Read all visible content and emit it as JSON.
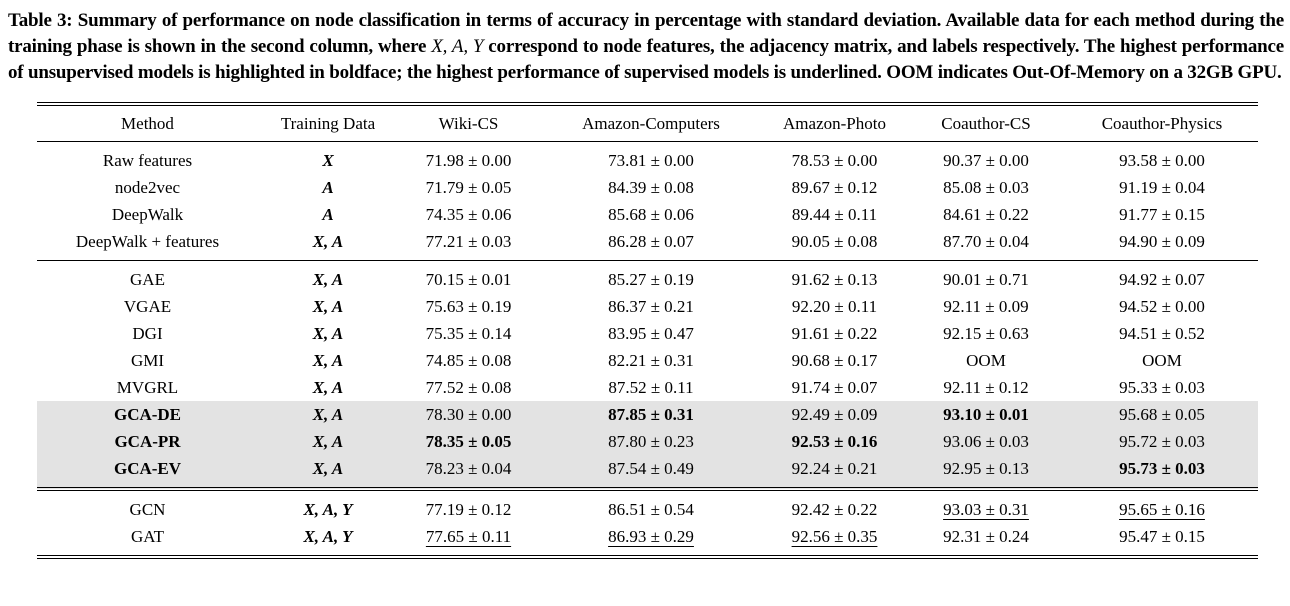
{
  "caption": {
    "before_math": "Table 3: Summary of performance on node classification in terms of accuracy in percentage with standard deviation. Available data for each method during the training phase is shown in the second column, where ",
    "math": "X, A, Y",
    "after_math": " correspond to node features, the adjacency matrix, and labels respectively. The highest performance of unsupervised models is highlighted in boldface; the highest performance of supervised models is underlined. OOM indicates Out-Of-Memory on a 32GB GPU."
  },
  "table": {
    "columns": [
      "Method",
      "Training Data",
      "Wiki-CS",
      "Amazon-Computers",
      "Amazon-Photo",
      "Coauthor-CS",
      "Coauthor-Physics"
    ],
    "highlight_color": "#e3e3e3",
    "groups": [
      {
        "name": "traditional-baselines",
        "rows": [
          {
            "method": "Raw features",
            "training": "X",
            "values": [
              {
                "text": "71.98 ± 0.00"
              },
              {
                "text": "73.81 ± 0.00"
              },
              {
                "text": "78.53 ± 0.00"
              },
              {
                "text": "90.37 ± 0.00"
              },
              {
                "text": "93.58 ± 0.00"
              }
            ]
          },
          {
            "method": "node2vec",
            "training": "A",
            "values": [
              {
                "text": "71.79 ± 0.05"
              },
              {
                "text": "84.39 ± 0.08"
              },
              {
                "text": "89.67 ± 0.12"
              },
              {
                "text": "85.08 ± 0.03"
              },
              {
                "text": "91.19 ± 0.04"
              }
            ]
          },
          {
            "method": "DeepWalk",
            "training": "A",
            "values": [
              {
                "text": "74.35 ± 0.06"
              },
              {
                "text": "85.68 ± 0.06"
              },
              {
                "text": "89.44 ± 0.11"
              },
              {
                "text": "84.61 ± 0.22"
              },
              {
                "text": "91.77 ± 0.15"
              }
            ]
          },
          {
            "method": "DeepWalk + features",
            "training": "X, A",
            "values": [
              {
                "text": "77.21 ± 0.03"
              },
              {
                "text": "86.28 ± 0.07"
              },
              {
                "text": "90.05 ± 0.08"
              },
              {
                "text": "87.70 ± 0.04"
              },
              {
                "text": "94.90 ± 0.09"
              }
            ]
          }
        ]
      },
      {
        "name": "unsupervised-models",
        "rows": [
          {
            "method": "GAE",
            "training": "X, A",
            "values": [
              {
                "text": "70.15 ± 0.01"
              },
              {
                "text": "85.27 ± 0.19"
              },
              {
                "text": "91.62 ± 0.13"
              },
              {
                "text": "90.01 ± 0.71"
              },
              {
                "text": "94.92 ± 0.07"
              }
            ]
          },
          {
            "method": "VGAE",
            "training": "X, A",
            "values": [
              {
                "text": "75.63 ± 0.19"
              },
              {
                "text": "86.37 ± 0.21"
              },
              {
                "text": "92.20 ± 0.11"
              },
              {
                "text": "92.11 ± 0.09"
              },
              {
                "text": "94.52 ± 0.00"
              }
            ]
          },
          {
            "method": "DGI",
            "training": "X, A",
            "values": [
              {
                "text": "75.35 ± 0.14"
              },
              {
                "text": "83.95 ± 0.47"
              },
              {
                "text": "91.61 ± 0.22"
              },
              {
                "text": "92.15 ± 0.63"
              },
              {
                "text": "94.51 ± 0.52"
              }
            ]
          },
          {
            "method": "GMI",
            "training": "X, A",
            "values": [
              {
                "text": "74.85 ± 0.08"
              },
              {
                "text": "82.21 ± 0.31"
              },
              {
                "text": "90.68 ± 0.17"
              },
              {
                "text": "OOM"
              },
              {
                "text": "OOM"
              }
            ]
          },
          {
            "method": "MVGRL",
            "training": "X, A",
            "values": [
              {
                "text": "77.52 ± 0.08"
              },
              {
                "text": "87.52 ± 0.11"
              },
              {
                "text": "91.74 ± 0.07"
              },
              {
                "text": "92.11 ± 0.12"
              },
              {
                "text": "95.33 ± 0.03"
              }
            ]
          },
          {
            "method": "GCA-DE",
            "method_bold": true,
            "highlight": true,
            "training": "X, A",
            "values": [
              {
                "text": "78.30 ± 0.00"
              },
              {
                "text": "87.85 ± 0.31",
                "style": "bold"
              },
              {
                "text": "92.49 ± 0.09"
              },
              {
                "text": "93.10 ± 0.01",
                "style": "bold"
              },
              {
                "text": "95.68 ± 0.05"
              }
            ]
          },
          {
            "method": "GCA-PR",
            "method_bold": true,
            "highlight": true,
            "training": "X, A",
            "values": [
              {
                "text": "78.35 ± 0.05",
                "style": "bold"
              },
              {
                "text": "87.80 ± 0.23"
              },
              {
                "text": "92.53 ± 0.16",
                "style": "bold"
              },
              {
                "text": "93.06 ± 0.03"
              },
              {
                "text": "95.72 ± 0.03"
              }
            ]
          },
          {
            "method": "GCA-EV",
            "method_bold": true,
            "highlight": true,
            "training": "X, A",
            "values": [
              {
                "text": "78.23 ± 0.04"
              },
              {
                "text": "87.54 ± 0.49"
              },
              {
                "text": "92.24 ± 0.21"
              },
              {
                "text": "92.95 ± 0.13"
              },
              {
                "text": "95.73 ± 0.03",
                "style": "bold"
              }
            ]
          }
        ]
      },
      {
        "name": "supervised-models",
        "rows": [
          {
            "method": "GCN",
            "training": "X, A, Y",
            "values": [
              {
                "text": "77.19 ± 0.12"
              },
              {
                "text": "86.51 ± 0.54"
              },
              {
                "text": "92.42 ± 0.22"
              },
              {
                "text": "93.03 ± 0.31",
                "style": "underline"
              },
              {
                "text": "95.65 ± 0.16",
                "style": "underline"
              }
            ]
          },
          {
            "method": "GAT",
            "training": "X, A, Y",
            "values": [
              {
                "text": "77.65 ± 0.11",
                "style": "underline"
              },
              {
                "text": "86.93 ± 0.29",
                "style": "underline"
              },
              {
                "text": "92.56 ± 0.35",
                "style": "underline"
              },
              {
                "text": "92.31 ± 0.24"
              },
              {
                "text": "95.47 ± 0.15"
              }
            ]
          }
        ]
      }
    ]
  }
}
